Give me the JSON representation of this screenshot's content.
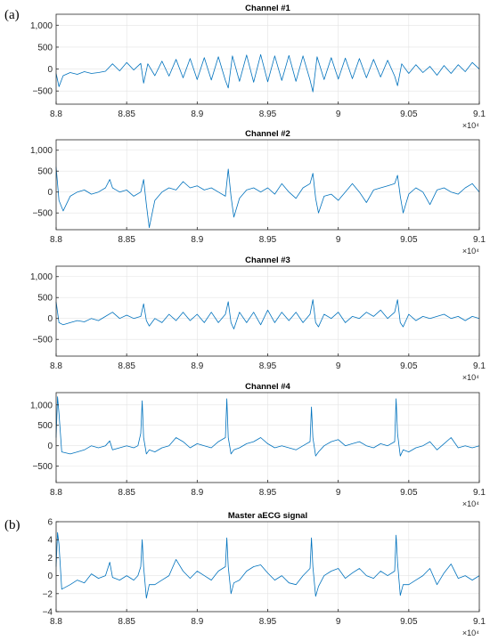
{
  "figure_labels": {
    "a": "(a)",
    "b": "(b)"
  },
  "colors": {
    "signal": "#0072BD",
    "grid": "#e3e3e3",
    "axis": "#262626"
  },
  "chart_data": [
    {
      "type": "line",
      "title": "Channel #1",
      "x_range": [
        88000,
        91000
      ],
      "x_ticks": [
        88000,
        88500,
        89000,
        89500,
        90000,
        90500,
        91000
      ],
      "x_tick_labels": [
        "8.8",
        "8.85",
        "8.9",
        "8.95",
        "9",
        "9.05",
        "9.1"
      ],
      "x_exponent": "×10⁴",
      "ylim": [
        -800,
        1250
      ],
      "y_ticks": [
        -500,
        0,
        500,
        1000
      ],
      "y_tick_labels": [
        "−500",
        "0",
        "500",
        "1,000"
      ],
      "grid": true,
      "series": [
        {
          "x": [
            88000,
            88020,
            88050,
            88100,
            88150,
            88200,
            88250,
            88300,
            88350,
            88400,
            88450,
            88500,
            88550,
            88600,
            88620,
            88650,
            88700,
            88750,
            88800,
            88850,
            88900,
            88950,
            89000,
            89050,
            89100,
            89150,
            89200,
            89220,
            89250,
            89300,
            89350,
            89400,
            89450,
            89500,
            89550,
            89600,
            89650,
            89700,
            89750,
            89800,
            89820,
            89850,
            89900,
            89950,
            90000,
            90050,
            90100,
            90150,
            90200,
            90250,
            90300,
            90350,
            90400,
            90420,
            90450,
            90500,
            90550,
            90600,
            90650,
            90700,
            90750,
            90800,
            90850,
            90900,
            90950,
            91000
          ],
          "y": [
            -100,
            -400,
            -150,
            -80,
            -120,
            -60,
            -100,
            -80,
            -50,
            120,
            -40,
            150,
            -20,
            130,
            -320,
            120,
            -150,
            180,
            -160,
            220,
            -200,
            240,
            -240,
            260,
            -250,
            280,
            -260,
            -430,
            300,
            -280,
            320,
            -300,
            330,
            -290,
            300,
            -260,
            310,
            -280,
            300,
            -250,
            -520,
            280,
            -240,
            260,
            -230,
            250,
            -220,
            240,
            -200,
            220,
            -180,
            200,
            -160,
            -380,
            120,
            -100,
            100,
            -80,
            60,
            -140,
            80,
            -100,
            100,
            -60,
            150,
            0
          ]
        }
      ]
    },
    {
      "type": "line",
      "title": "Channel #2",
      "x_range": [
        88000,
        91000
      ],
      "x_ticks": [
        88000,
        88500,
        89000,
        89500,
        90000,
        90500,
        91000
      ],
      "x_tick_labels": [
        "8.8",
        "8.85",
        "8.9",
        "8.95",
        "9",
        "9.05",
        "9.1"
      ],
      "x_exponent": "×10⁴",
      "ylim": [
        -900,
        1250
      ],
      "y_ticks": [
        -500,
        0,
        500,
        1000
      ],
      "y_tick_labels": [
        "−500",
        "0",
        "500",
        "1,000"
      ],
      "grid": true,
      "series": [
        {
          "x": [
            88000,
            88020,
            88050,
            88100,
            88150,
            88200,
            88250,
            88300,
            88350,
            88380,
            88400,
            88450,
            88500,
            88550,
            88600,
            88620,
            88640,
            88660,
            88700,
            88750,
            88800,
            88850,
            88900,
            88950,
            89000,
            89050,
            89100,
            89150,
            89200,
            89220,
            89240,
            89260,
            89300,
            89350,
            89400,
            89450,
            89500,
            89550,
            89600,
            89650,
            89700,
            89750,
            89800,
            89820,
            89840,
            89860,
            89900,
            89950,
            90000,
            90050,
            90100,
            90150,
            90200,
            90250,
            90300,
            90350,
            90400,
            90420,
            90440,
            90460,
            90500,
            90550,
            90600,
            90650,
            90700,
            90750,
            90800,
            90850,
            90900,
            90950,
            91000
          ],
          "y": [
            600,
            -200,
            -450,
            -100,
            0,
            50,
            -50,
            0,
            100,
            300,
            100,
            0,
            50,
            -100,
            0,
            300,
            -300,
            -850,
            -200,
            0,
            100,
            50,
            250,
            100,
            150,
            50,
            100,
            0,
            -100,
            550,
            -100,
            -600,
            -150,
            50,
            100,
            0,
            100,
            -50,
            200,
            0,
            -150,
            100,
            200,
            450,
            -150,
            -500,
            -100,
            -50,
            -200,
            0,
            200,
            0,
            -250,
            50,
            100,
            150,
            200,
            400,
            -100,
            -500,
            -50,
            100,
            0,
            -300,
            50,
            100,
            0,
            -50,
            100,
            200,
            0
          ]
        }
      ]
    },
    {
      "type": "line",
      "title": "Channel #3",
      "x_range": [
        88000,
        91000
      ],
      "x_ticks": [
        88000,
        88500,
        89000,
        89500,
        90000,
        90500,
        91000
      ],
      "x_tick_labels": [
        "8.8",
        "8.85",
        "8.9",
        "8.95",
        "9",
        "9.05",
        "9.1"
      ],
      "x_exponent": "×10⁴",
      "ylim": [
        -900,
        1250
      ],
      "y_ticks": [
        -500,
        0,
        500,
        1000
      ],
      "y_tick_labels": [
        "−500",
        "0",
        "500",
        "1,000"
      ],
      "grid": true,
      "series": [
        {
          "x": [
            88000,
            88020,
            88050,
            88100,
            88150,
            88200,
            88250,
            88300,
            88350,
            88400,
            88450,
            88500,
            88550,
            88600,
            88620,
            88640,
            88660,
            88700,
            88750,
            88800,
            88850,
            88900,
            88950,
            89000,
            89050,
            89100,
            89150,
            89200,
            89220,
            89240,
            89260,
            89300,
            89350,
            89400,
            89450,
            89500,
            89550,
            89600,
            89650,
            89700,
            89750,
            89800,
            89820,
            89840,
            89860,
            89900,
            89950,
            90000,
            90050,
            90100,
            90150,
            90200,
            90250,
            90300,
            90350,
            90400,
            90420,
            90440,
            90460,
            90500,
            90550,
            90600,
            90650,
            90700,
            90750,
            90800,
            90850,
            90900,
            90950,
            91000
          ],
          "y": [
            400,
            -100,
            -150,
            -100,
            -50,
            -80,
            0,
            -50,
            50,
            150,
            0,
            80,
            0,
            50,
            350,
            -50,
            -180,
            0,
            -100,
            100,
            -50,
            150,
            -50,
            100,
            -100,
            150,
            -100,
            100,
            400,
            -100,
            -250,
            150,
            -100,
            150,
            -150,
            200,
            -100,
            150,
            -50,
            150,
            -100,
            100,
            450,
            -100,
            -200,
            100,
            0,
            150,
            -100,
            50,
            0,
            150,
            50,
            200,
            0,
            150,
            450,
            -100,
            -200,
            100,
            -50,
            50,
            0,
            50,
            100,
            0,
            50,
            -50,
            50,
            0
          ]
        }
      ]
    },
    {
      "type": "line",
      "title": "Channel #4",
      "x_range": [
        88000,
        91000
      ],
      "x_ticks": [
        88000,
        88500,
        89000,
        89500,
        90000,
        90500,
        91000
      ],
      "x_tick_labels": [
        "8.8",
        "8.85",
        "8.9",
        "8.95",
        "9",
        "9.05",
        "9.1"
      ],
      "x_exponent": "×10⁴",
      "ylim": [
        -900,
        1300
      ],
      "y_ticks": [
        -500,
        0,
        500,
        1000
      ],
      "y_tick_labels": [
        "−500",
        "0",
        "500",
        "1,000"
      ],
      "grid": true,
      "series": [
        {
          "x": [
            88000,
            88010,
            88020,
            88040,
            88100,
            88150,
            88200,
            88250,
            88300,
            88350,
            88380,
            88400,
            88450,
            88500,
            88550,
            88580,
            88600,
            88610,
            88620,
            88640,
            88660,
            88700,
            88750,
            88800,
            88850,
            88900,
            88950,
            89000,
            89050,
            89100,
            89150,
            89200,
            89210,
            89220,
            89240,
            89260,
            89300,
            89350,
            89400,
            89450,
            89500,
            89550,
            89600,
            89650,
            89700,
            89750,
            89800,
            89810,
            89820,
            89840,
            89860,
            89900,
            89950,
            90000,
            90050,
            90100,
            90150,
            90200,
            90250,
            90300,
            90350,
            90400,
            90410,
            90420,
            90440,
            90460,
            90500,
            90550,
            90600,
            90650,
            90700,
            90750,
            90800,
            90850,
            90900,
            90950,
            91000
          ],
          "y": [
            200,
            1200,
            800,
            -150,
            -200,
            -150,
            -100,
            0,
            -50,
            0,
            120,
            -100,
            -50,
            0,
            -50,
            0,
            300,
            1100,
            200,
            -200,
            -100,
            -150,
            -50,
            0,
            200,
            100,
            -50,
            50,
            0,
            -50,
            100,
            200,
            1150,
            200,
            -200,
            -100,
            -50,
            50,
            100,
            200,
            50,
            -50,
            0,
            -50,
            -100,
            0,
            100,
            950,
            200,
            -250,
            -150,
            0,
            100,
            150,
            0,
            50,
            100,
            0,
            -50,
            50,
            0,
            100,
            1150,
            300,
            -250,
            -100,
            -150,
            -50,
            0,
            100,
            -100,
            50,
            200,
            -50,
            0,
            -50,
            0
          ]
        }
      ]
    },
    {
      "type": "line",
      "title": "Master aECG signal",
      "x_range": [
        88000,
        91000
      ],
      "x_ticks": [
        88000,
        88500,
        89000,
        89500,
        90000,
        90500,
        91000
      ],
      "x_tick_labels": [
        "8.8",
        "8.85",
        "8.9",
        "8.95",
        "9",
        "9.05",
        "9.1"
      ],
      "x_exponent": "×10⁴",
      "ylim": [
        -4,
        6
      ],
      "y_ticks": [
        -4,
        -2,
        0,
        2,
        4,
        6
      ],
      "y_tick_labels": [
        "−4",
        "−2",
        "0",
        "2",
        "4",
        "6"
      ],
      "grid": true,
      "series": [
        {
          "x": [
            88000,
            88010,
            88020,
            88040,
            88100,
            88150,
            88200,
            88250,
            88300,
            88350,
            88380,
            88400,
            88450,
            88500,
            88550,
            88580,
            88600,
            88610,
            88620,
            88640,
            88660,
            88700,
            88750,
            88800,
            88850,
            88900,
            88950,
            89000,
            89050,
            89100,
            89150,
            89200,
            89210,
            89220,
            89240,
            89260,
            89300,
            89350,
            89400,
            89450,
            89500,
            89550,
            89600,
            89650,
            89700,
            89750,
            89800,
            89810,
            89820,
            89840,
            89860,
            89900,
            89950,
            90000,
            90050,
            90100,
            90150,
            90200,
            90250,
            90300,
            90350,
            90400,
            90410,
            90420,
            90440,
            90460,
            90500,
            90550,
            90600,
            90650,
            90700,
            90750,
            90800,
            90850,
            90900,
            90950,
            91000
          ],
          "y": [
            1,
            4.8,
            3.5,
            -1.5,
            -1,
            -0.5,
            -0.8,
            0.2,
            -0.3,
            0,
            1.5,
            -0.2,
            -0.5,
            0,
            -0.5,
            0,
            1,
            4,
            1,
            -2.5,
            -1,
            -1,
            -0.5,
            0,
            1.8,
            0.5,
            -0.3,
            0.5,
            0,
            -0.5,
            0.5,
            1,
            4.2,
            1,
            -2,
            -0.8,
            -0.5,
            0.5,
            1,
            1.2,
            0.3,
            -0.5,
            0,
            -0.8,
            -1,
            0,
            0.8,
            4.2,
            1,
            -2.3,
            -1.2,
            0,
            0.5,
            0.8,
            -0.3,
            0.3,
            0.8,
            0,
            -0.3,
            0.5,
            0,
            0.5,
            4.5,
            1.5,
            -2.2,
            -1,
            -1,
            -0.5,
            0,
            0.8,
            -1,
            0.3,
            1.3,
            -0.3,
            0,
            -0.5,
            0
          ]
        }
      ]
    }
  ]
}
